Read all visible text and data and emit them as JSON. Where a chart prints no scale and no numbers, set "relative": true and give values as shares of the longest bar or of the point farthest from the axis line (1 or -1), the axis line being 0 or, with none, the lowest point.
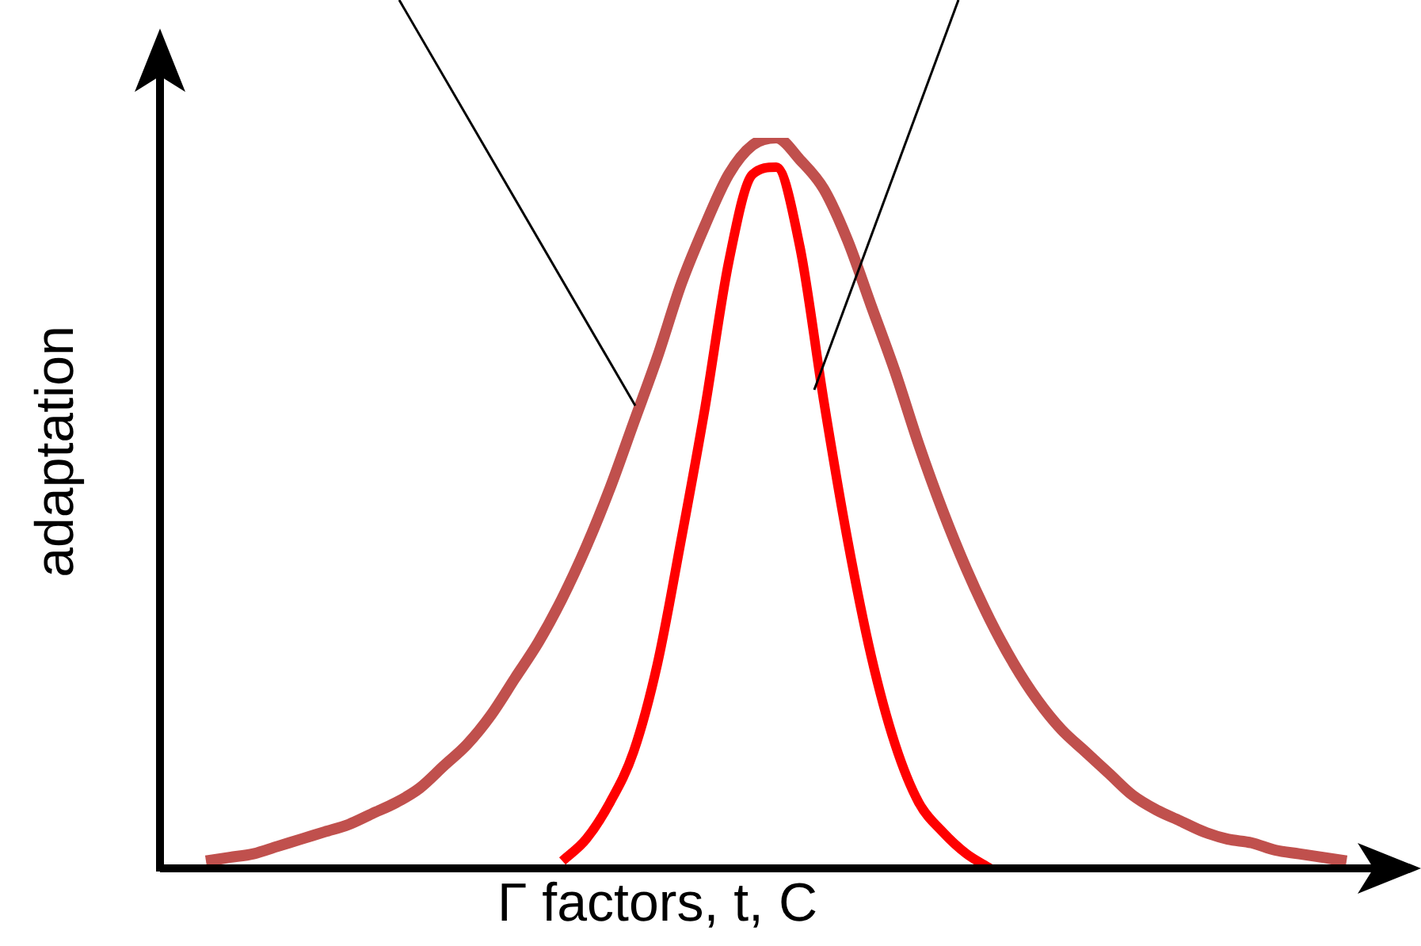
{
  "chart_data": {
    "type": "line",
    "relative": true,
    "xlabel": "Γ factors, t, C",
    "ylabel": "adaptation",
    "marker": "none",
    "categories": [
      null,
      null,
      null,
      null,
      null,
      null,
      null,
      null,
      null,
      null,
      null,
      null,
      null,
      null,
      null,
      null,
      null,
      null,
      null,
      null,
      null,
      null,
      null,
      null,
      null,
      null,
      null,
      null,
      null,
      null,
      null,
      null,
      null,
      null,
      null,
      null,
      null,
      null,
      null,
      null,
      null,
      null,
      null,
      null,
      null,
      null,
      null,
      null,
      null,
      null,
      null,
      null,
      null
    ],
    "series": [
      {
        "color": "#c0504d",
        "values": [
          null,
          null,
          0.01,
          0.015,
          0.02,
          0.03,
          0.04,
          0.05,
          0.06,
          0.075,
          0.09,
          0.11,
          0.14,
          0.17,
          0.21,
          0.26,
          0.31,
          0.37,
          0.44,
          0.52,
          0.61,
          0.7,
          0.8,
          0.88,
          0.95,
          0.99,
          1.0,
          0.97,
          0.93,
          0.86,
          0.77,
          0.68,
          0.58,
          0.49,
          0.41,
          0.34,
          0.28,
          0.23,
          0.19,
          0.16,
          0.13,
          0.1,
          0.08,
          0.065,
          0.05,
          0.04,
          0.035,
          0.025,
          0.02,
          0.015,
          0.01,
          null,
          null
        ]
      },
      {
        "color": "#ff0000",
        "values": [
          null,
          null,
          null,
          null,
          null,
          null,
          null,
          null,
          null,
          null,
          null,
          null,
          null,
          null,
          null,
          null,
          null,
          0.01,
          0.04,
          0.09,
          0.16,
          0.28,
          0.45,
          0.63,
          0.83,
          0.95,
          0.96,
          0.85,
          0.64,
          0.45,
          0.29,
          0.17,
          0.09,
          0.05,
          0.02,
          0.0,
          null,
          null,
          null,
          null,
          null,
          null,
          null,
          null,
          null,
          null,
          null,
          null,
          null,
          null,
          null,
          null,
          null
        ]
      }
    ]
  }
}
